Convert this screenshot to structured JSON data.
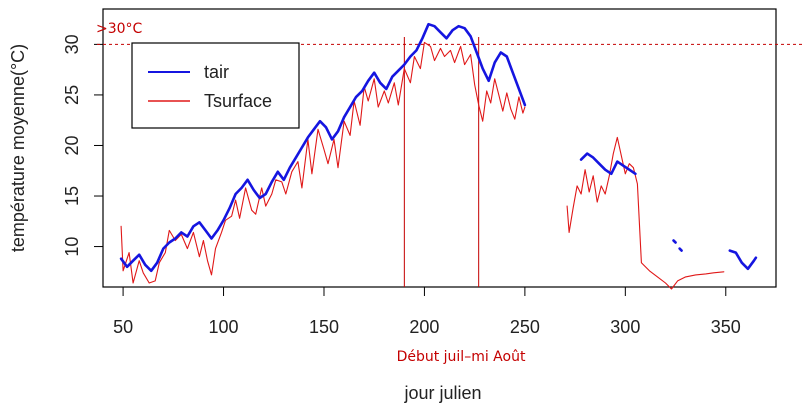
{
  "chart_data": {
    "type": "line",
    "xlabel": "jour julien",
    "ylabel": "température moyenne(°C)",
    "xlim": [
      40,
      375
    ],
    "ylim": [
      6,
      33.5
    ],
    "xticks": [
      50,
      100,
      150,
      200,
      250,
      300,
      350
    ],
    "yticks": [
      10,
      15,
      20,
      25,
      30
    ],
    "grid": false,
    "legend": {
      "position": "top-left",
      "entries": [
        "tair",
        "Tsurface"
      ]
    },
    "colors": {
      "tair": "#1515e0",
      "Tsurface": "#e01818",
      "annotation": "#c40000"
    },
    "annotations": {
      "threshold_value": 30,
      "threshold_label": ">30°C",
      "period_lines": [
        190,
        227
      ],
      "period_label": "Début juil–mi Août"
    },
    "series": [
      {
        "name": "tair",
        "segments": [
          [
            [
              49,
              8.8
            ],
            [
              52,
              8.0
            ],
            [
              55,
              8.6
            ],
            [
              58,
              9.2
            ],
            [
              61,
              8.2
            ],
            [
              64,
              7.6
            ],
            [
              67,
              8.4
            ],
            [
              70,
              9.8
            ],
            [
              73,
              10.4
            ],
            [
              76,
              10.8
            ],
            [
              79,
              11.4
            ],
            [
              82,
              11.0
            ],
            [
              85,
              12.0
            ],
            [
              88,
              12.4
            ],
            [
              91,
              11.6
            ],
            [
              94,
              10.8
            ],
            [
              97,
              11.6
            ],
            [
              100,
              12.6
            ],
            [
              103,
              13.8
            ],
            [
              106,
              15.2
            ],
            [
              109,
              15.8
            ],
            [
              112,
              16.6
            ],
            [
              115,
              15.6
            ],
            [
              118,
              14.8
            ],
            [
              121,
              15.2
            ],
            [
              124,
              16.4
            ],
            [
              127,
              17.4
            ],
            [
              130,
              16.6
            ],
            [
              133,
              17.8
            ],
            [
              136,
              18.8
            ],
            [
              139,
              19.8
            ],
            [
              142,
              20.8
            ],
            [
              145,
              21.6
            ],
            [
              148,
              22.4
            ],
            [
              151,
              21.8
            ],
            [
              154,
              20.6
            ],
            [
              157,
              21.4
            ],
            [
              160,
              22.8
            ],
            [
              163,
              23.8
            ],
            [
              166,
              24.8
            ],
            [
              169,
              25.4
            ],
            [
              172,
              26.4
            ],
            [
              175,
              27.2
            ],
            [
              178,
              26.2
            ],
            [
              181,
              25.6
            ],
            [
              184,
              26.8
            ],
            [
              187,
              27.4
            ],
            [
              190,
              28.0
            ],
            [
              193,
              28.8
            ],
            [
              196,
              29.4
            ],
            [
              199,
              30.6
            ],
            [
              202,
              32.0
            ],
            [
              205,
              31.8
            ],
            [
              208,
              31.2
            ],
            [
              211,
              30.6
            ],
            [
              214,
              31.4
            ],
            [
              217,
              31.8
            ],
            [
              220,
              31.6
            ],
            [
              223,
              30.8
            ],
            [
              226,
              29.2
            ],
            [
              229,
              27.6
            ],
            [
              232,
              26.4
            ],
            [
              235,
              28.2
            ],
            [
              238,
              29.2
            ],
            [
              241,
              28.8
            ],
            [
              244,
              27.2
            ],
            [
              247,
              25.6
            ],
            [
              250,
              24.0
            ]
          ],
          [
            [
              278,
              18.6
            ],
            [
              281,
              19.2
            ],
            [
              284,
              18.8
            ],
            [
              287,
              18.2
            ],
            [
              290,
              17.6
            ],
            [
              293,
              17.2
            ],
            [
              296,
              18.4
            ],
            [
              299,
              18.0
            ],
            [
              302,
              17.6
            ],
            [
              305,
              17.2
            ]
          ],
          [
            [
              324,
              10.6
            ],
            [
              325,
              10.4
            ]
          ],
          [
            [
              327,
              9.8
            ],
            [
              328,
              9.6
            ]
          ],
          [
            [
              352,
              9.6
            ],
            [
              355,
              9.4
            ],
            [
              358,
              8.4
            ],
            [
              361,
              7.8
            ],
            [
              364,
              8.6
            ],
            [
              365,
              8.9
            ]
          ]
        ]
      },
      {
        "name": "Tsurface",
        "segments": [
          [
            [
              49,
              12.0
            ],
            [
              50,
              7.6
            ],
            [
              53,
              9.4
            ],
            [
              55,
              6.4
            ],
            [
              58,
              8.6
            ],
            [
              60,
              7.4
            ],
            [
              63,
              6.4
            ],
            [
              66,
              6.6
            ],
            [
              68,
              8.4
            ],
            [
              71,
              9.4
            ],
            [
              73,
              11.6
            ],
            [
              76,
              10.6
            ],
            [
              79,
              11.2
            ],
            [
              82,
              9.8
            ],
            [
              85,
              11.4
            ],
            [
              88,
              9.0
            ],
            [
              90,
              10.6
            ],
            [
              92,
              8.6
            ],
            [
              94,
              7.2
            ],
            [
              96,
              9.8
            ],
            [
              99,
              11.4
            ],
            [
              101,
              12.6
            ],
            [
              104,
              13.0
            ],
            [
              106,
              14.6
            ],
            [
              108,
              12.8
            ],
            [
              111,
              15.8
            ],
            [
              114,
              13.6
            ],
            [
              116,
              13.2
            ],
            [
              119,
              15.8
            ],
            [
              121,
              14.0
            ],
            [
              124,
              15.2
            ],
            [
              126,
              16.6
            ],
            [
              129,
              16.4
            ],
            [
              131,
              15.2
            ],
            [
              134,
              17.4
            ],
            [
              137,
              18.4
            ],
            [
              139,
              15.8
            ],
            [
              142,
              20.6
            ],
            [
              144,
              17.2
            ],
            [
              147,
              21.6
            ],
            [
              150,
              19.6
            ],
            [
              152,
              18.2
            ],
            [
              155,
              20.6
            ],
            [
              157,
              17.8
            ],
            [
              160,
              22.4
            ],
            [
              163,
              21.0
            ],
            [
              165,
              24.4
            ],
            [
              168,
              22.0
            ],
            [
              170,
              25.8
            ],
            [
              172,
              24.4
            ],
            [
              175,
              26.6
            ],
            [
              177,
              23.8
            ],
            [
              180,
              25.4
            ],
            [
              182,
              24.2
            ],
            [
              185,
              26.2
            ],
            [
              187,
              24.0
            ],
            [
              190,
              27.6
            ],
            [
              193,
              26.2
            ],
            [
              195,
              28.8
            ],
            [
              198,
              27.6
            ],
            [
              200,
              30.2
            ],
            [
              203,
              29.8
            ],
            [
              205,
              28.4
            ],
            [
              208,
              29.6
            ],
            [
              210,
              28.8
            ],
            [
              213,
              29.4
            ],
            [
              215,
              28.2
            ],
            [
              218,
              29.8
            ],
            [
              220,
              28.0
            ],
            [
              223,
              29.0
            ],
            [
              225,
              26.0
            ],
            [
              227,
              24.0
            ],
            [
              229,
              22.4
            ],
            [
              231,
              25.4
            ],
            [
              233,
              24.2
            ],
            [
              235,
              26.6
            ],
            [
              237,
              25.0
            ],
            [
              239,
              23.4
            ],
            [
              241,
              25.2
            ],
            [
              243,
              23.6
            ],
            [
              245,
              22.6
            ],
            [
              247,
              24.8
            ],
            [
              249,
              23.2
            ],
            [
              250,
              23.8
            ]
          ],
          [
            [
              271,
              14.0
            ],
            [
              272,
              11.4
            ],
            [
              274,
              13.8
            ],
            [
              276,
              16.0
            ],
            [
              278,
              15.2
            ],
            [
              280,
              17.6
            ],
            [
              282,
              15.4
            ],
            [
              284,
              17.0
            ],
            [
              286,
              14.4
            ],
            [
              288,
              16.0
            ],
            [
              290,
              15.2
            ],
            [
              292,
              17.0
            ],
            [
              294,
              19.2
            ],
            [
              296,
              20.8
            ],
            [
              298,
              19.0
            ],
            [
              300,
              17.2
            ],
            [
              302,
              18.2
            ],
            [
              304,
              17.8
            ],
            [
              306,
              16.2
            ],
            [
              308,
              8.4
            ],
            [
              312,
              7.6
            ],
            [
              316,
              7.0
            ],
            [
              320,
              6.4
            ],
            [
              323,
              5.8
            ],
            [
              326,
              6.6
            ],
            [
              330,
              7.0
            ],
            [
              335,
              7.2
            ],
            [
              340,
              7.3
            ],
            [
              344,
              7.4
            ],
            [
              349,
              7.5
            ]
          ]
        ]
      }
    ]
  }
}
